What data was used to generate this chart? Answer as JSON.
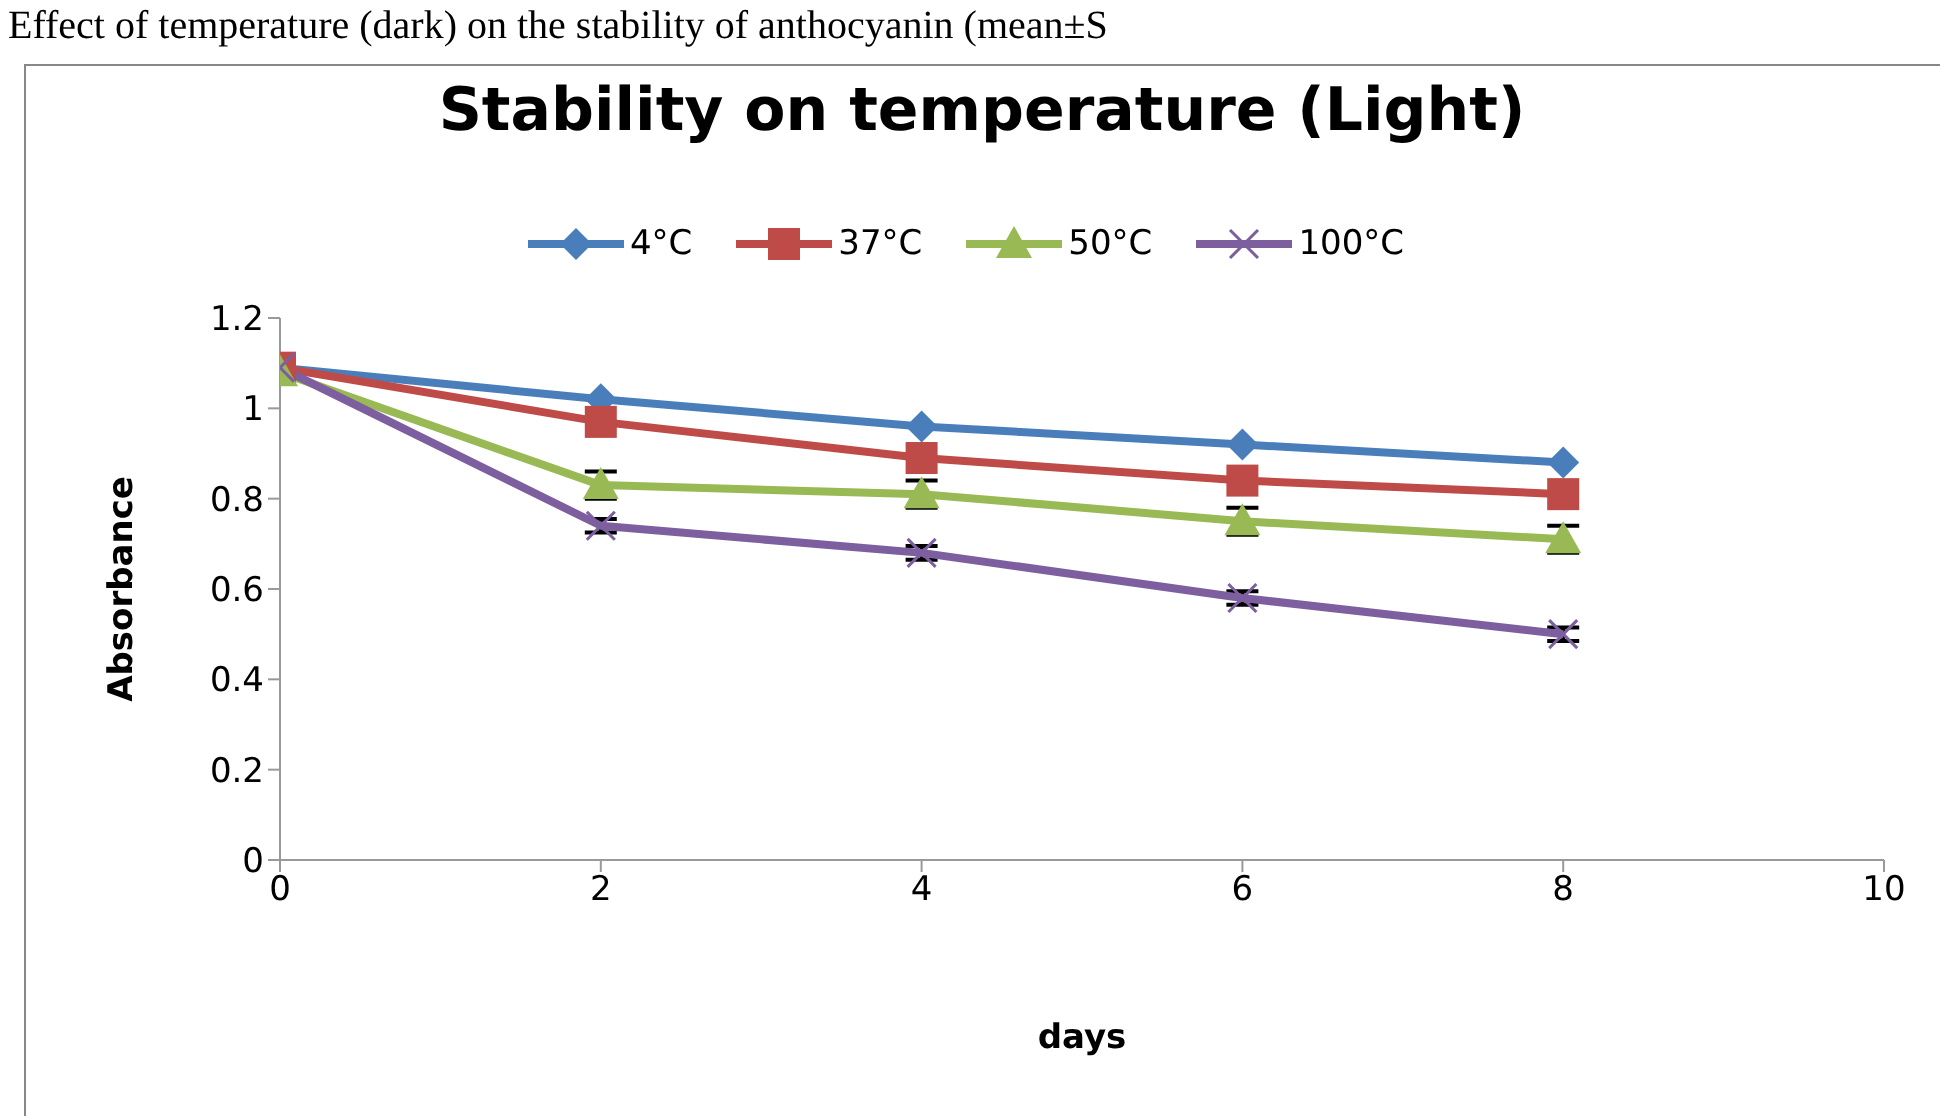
{
  "chart_data": {
    "type": "line",
    "title": "Stability on temperature (Light)",
    "annotations": [
      "Effect of temperature (dark) on the stability of anthocyanin (mean±S"
    ],
    "xlabel": "days",
    "ylabel": "Absorbance",
    "x": [
      0,
      2,
      4,
      6,
      8
    ],
    "xlim": [
      0,
      10
    ],
    "xticks": [
      0,
      2,
      4,
      6,
      8,
      10
    ],
    "ylim": [
      0,
      1.2
    ],
    "yticks": [
      0,
      0.2,
      0.4,
      0.6,
      0.8,
      1,
      1.2
    ],
    "grid": false,
    "legend": "top",
    "line_style": "solid",
    "series": [
      {
        "name": "4°C",
        "color": "#4a7ebb",
        "marker": "diamond",
        "values": [
          1.09,
          1.02,
          0.96,
          0.92,
          0.88
        ]
      },
      {
        "name": "37°C",
        "color": "#be4b48",
        "marker": "square",
        "values": [
          1.09,
          0.97,
          0.89,
          0.84,
          0.81
        ]
      },
      {
        "name": "50°C",
        "color": "#98b954",
        "marker": "triangle",
        "values": [
          1.08,
          0.83,
          0.81,
          0.75,
          0.71
        ],
        "errors": [
          null,
          0.03,
          0.03,
          0.03,
          0.03
        ]
      },
      {
        "name": "100°C",
        "color": "#7d5fa0",
        "marker": "cross",
        "values": [
          1.09,
          0.74,
          0.68,
          0.58,
          0.5
        ],
        "errors": [
          null,
          0.015,
          0.015,
          0.015,
          0.015
        ]
      }
    ]
  }
}
